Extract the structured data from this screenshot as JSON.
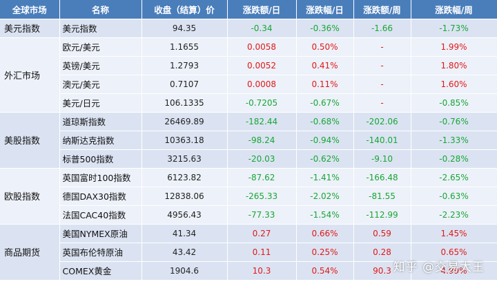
{
  "headers": [
    "全球市场",
    "名称",
    "收盘（结算）价",
    "涨跌额/日",
    "涨跌幅/日",
    "涨跌额/周",
    "涨跌幅/周"
  ],
  "groups": [
    {
      "market": "美元指数",
      "rows": [
        {
          "name": "美元指数",
          "close": "94.35",
          "chg_d": "-0.34",
          "pct_d": "-0.36%",
          "chg_w": "-1.66",
          "pct_w": "-1.73%"
        }
      ]
    },
    {
      "market": "外汇市场",
      "rows": [
        {
          "name": "欧元/美元",
          "close": "1.1655",
          "chg_d": "0.0058",
          "pct_d": "0.50%",
          "chg_w": "-",
          "pct_w": "1.99%"
        },
        {
          "name": "英镑/美元",
          "close": "1.2793",
          "chg_d": "0.0052",
          "pct_d": "0.41%",
          "chg_w": "-",
          "pct_w": "1.80%"
        },
        {
          "name": "澳元/美元",
          "close": "0.7107",
          "chg_d": "0.0008",
          "pct_d": "0.11%",
          "chg_w": "-",
          "pct_w": "1.60%"
        },
        {
          "name": "美元/日元",
          "close": "106.1335",
          "chg_d": "-0.7205",
          "pct_d": "-0.67%",
          "chg_w": "-",
          "pct_w": "-0.85%"
        }
      ]
    },
    {
      "market": "美股指数",
      "rows": [
        {
          "name": "道琼斯指数",
          "close": "26469.89",
          "chg_d": "-182.44",
          "pct_d": "-0.68%",
          "chg_w": "-202.06",
          "pct_w": "-0.76%"
        },
        {
          "name": "纳斯达克指数",
          "close": "10363.18",
          "chg_d": "-98.24",
          "pct_d": "-0.94%",
          "chg_w": "-140.01",
          "pct_w": "-1.33%"
        },
        {
          "name": "标普500指数",
          "close": "3215.63",
          "chg_d": "-20.03",
          "pct_d": "-0.62%",
          "chg_w": "-9.10",
          "pct_w": "-0.28%"
        }
      ]
    },
    {
      "market": "欧股指数",
      "rows": [
        {
          "name": "英国富时100指数",
          "close": "6123.82",
          "chg_d": "-87.62",
          "pct_d": "-1.41%",
          "chg_w": "-166.48",
          "pct_w": "-2.65%"
        },
        {
          "name": "德国DAX30指数",
          "close": "12838.06",
          "chg_d": "-265.33",
          "pct_d": "-2.02%",
          "chg_w": "-81.55",
          "pct_w": "-0.63%"
        },
        {
          "name": "法国CAC40指数",
          "close": "4956.43",
          "chg_d": "-77.33",
          "pct_d": "-1.54%",
          "chg_w": "-112.99",
          "pct_w": "-2.23%"
        }
      ]
    },
    {
      "market": "商品期货",
      "rows": [
        {
          "name": "美国NYMEX原油",
          "close": "41.34",
          "chg_d": "0.27",
          "pct_d": "0.66%",
          "chg_w": "0.59",
          "pct_w": "1.45%"
        },
        {
          "name": "英国布伦特原油",
          "close": "43.42",
          "chg_d": "0.11",
          "pct_d": "0.25%",
          "chg_w": "0.28",
          "pct_w": "0.65%"
        },
        {
          "name": "COMEX黄金",
          "close": "1904.6",
          "chg_d": "10.3",
          "pct_d": "0.54%",
          "chg_w": "90.3",
          "pct_w": "4.99%"
        }
      ]
    }
  ],
  "watermark": "知乎 @交易大王",
  "colors": {
    "header_bg": "#4a7ebb",
    "band_dark": "#dbe3f2",
    "band_light": "#edf1f9",
    "up": "#e01818",
    "down": "#17a635"
  }
}
